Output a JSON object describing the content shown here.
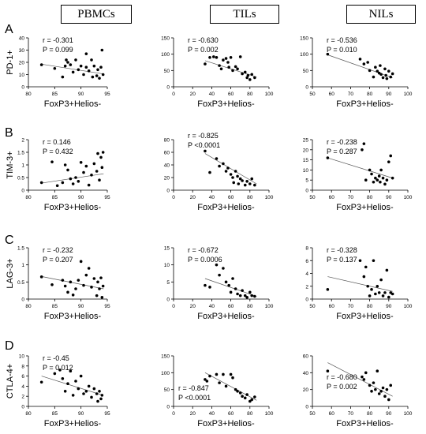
{
  "columns": [
    "PBMCs",
    "TILs",
    "NILs"
  ],
  "rows": [
    {
      "letter": "A",
      "ylabel": "PD-1+"
    },
    {
      "letter": "B",
      "ylabel": "TIM-3+"
    },
    {
      "letter": "C",
      "ylabel": "LAG-3+"
    },
    {
      "letter": "D",
      "ylabel": "CTLA-4+"
    }
  ],
  "xlabel": "FoxP3+Helios-",
  "chart_data": [
    {
      "type": "scatter",
      "row": "A",
      "column": "PBMCs",
      "xlabel": "FoxP3+Helios-",
      "ylabel": "PD-1+",
      "xlim": [
        80,
        95
      ],
      "ylim": [
        0,
        40
      ],
      "xticks": [
        80,
        85,
        90,
        95
      ],
      "yticks": [
        0,
        10,
        20,
        30,
        40
      ],
      "x": [
        82.5,
        85,
        86.5,
        87,
        87.2,
        87.5,
        88,
        88.5,
        89,
        89.5,
        90,
        90.5,
        91,
        91,
        91.5,
        92,
        92.2,
        92.5,
        93,
        93.2,
        93.5,
        93.8,
        94,
        94.2
      ],
      "y": [
        18,
        15,
        8,
        17,
        22,
        20,
        18,
        12,
        22,
        14,
        17,
        10,
        27,
        16,
        13,
        22,
        8,
        17,
        9,
        14,
        7,
        16,
        30,
        10
      ],
      "trend": [
        [
          82.5,
          18.5
        ],
        [
          94.3,
          10.5
        ]
      ],
      "r": "r = -0.301",
      "p": "P = 0.099"
    },
    {
      "type": "scatter",
      "row": "A",
      "column": "TILs",
      "xlabel": "FoxP3+Helios-",
      "ylabel": "PD-1+",
      "xlim": [
        0,
        100
      ],
      "ylim": [
        0,
        150
      ],
      "xticks": [
        0,
        20,
        40,
        60,
        80,
        100
      ],
      "yticks": [
        0,
        50,
        100,
        150
      ],
      "x": [
        33,
        38,
        42,
        45,
        48,
        50,
        52,
        55,
        57,
        58,
        60,
        62,
        65,
        67,
        70,
        72,
        75,
        77,
        78,
        80,
        82,
        85
      ],
      "y": [
        70,
        90,
        92,
        90,
        65,
        55,
        82,
        87,
        75,
        60,
        90,
        50,
        62,
        55,
        92,
        40,
        45,
        28,
        35,
        22,
        38,
        28
      ],
      "trend": [
        [
          33,
          80
        ],
        [
          87,
          30
        ]
      ],
      "r": "r = -0.630",
      "p": "P = 0.002"
    },
    {
      "type": "scatter",
      "row": "A",
      "column": "NILs",
      "xlabel": "FoxP3+Helios-",
      "ylabel": "PD-1+",
      "xlim": [
        50,
        100
      ],
      "ylim": [
        0,
        150
      ],
      "xticks": [
        50,
        60,
        70,
        80,
        90,
        100
      ],
      "yticks": [
        0,
        50,
        100,
        150
      ],
      "x": [
        58,
        75,
        77,
        79,
        80,
        82,
        83,
        84,
        85,
        85.5,
        86,
        87,
        88,
        88.5,
        89,
        90,
        91,
        92
      ],
      "y": [
        100,
        85,
        70,
        75,
        50,
        30,
        60,
        48,
        42,
        65,
        38,
        28,
        55,
        35,
        25,
        48,
        30,
        40
      ],
      "trend": [
        [
          58,
          98
        ],
        [
          92,
          28
        ]
      ],
      "r": "r = -0.536",
      "p": "P = 0.010"
    },
    {
      "type": "scatter",
      "row": "B",
      "column": "PBMCs",
      "xlabel": "FoxP3+Helios-",
      "ylabel": "TIM-3+",
      "xlim": [
        80,
        95
      ],
      "ylim": [
        0,
        2
      ],
      "xticks": [
        80,
        85,
        90,
        95
      ],
      "yticks": [
        0,
        0.5,
        1,
        1.5,
        2
      ],
      "x": [
        82.5,
        84.5,
        85.5,
        86.5,
        87,
        87.5,
        88,
        88.5,
        89,
        89.5,
        90,
        90.5,
        91,
        91.5,
        92,
        92.5,
        93,
        93.2,
        93.5,
        93.8,
        94,
        94.2
      ],
      "y": [
        0.3,
        1.12,
        0.18,
        0.3,
        1.0,
        0.8,
        0.45,
        0.25,
        0.5,
        0.35,
        1.1,
        0.7,
        0.95,
        0.2,
        0.6,
        1.05,
        0.75,
        1.45,
        0.4,
        1.3,
        0.9,
        1.5
      ],
      "trend": [
        [
          82.5,
          0.28
        ],
        [
          94.3,
          0.65
        ]
      ],
      "r": "r = 0.146",
      "p": "P = 0.432"
    },
    {
      "type": "scatter",
      "row": "B",
      "column": "TILs",
      "xlabel": "FoxP3+Helios-",
      "ylabel": "TIM-3+",
      "xlim": [
        0,
        100
      ],
      "ylim": [
        0,
        80
      ],
      "xticks": [
        0,
        20,
        40,
        60,
        80,
        100
      ],
      "yticks": [
        0,
        20,
        40,
        60,
        80
      ],
      "x": [
        33,
        38,
        45,
        48,
        52,
        55,
        57,
        60,
        62,
        63,
        65,
        67,
        68,
        70,
        72,
        75,
        77,
        80,
        82,
        85
      ],
      "y": [
        62,
        28,
        50,
        38,
        42,
        30,
        35,
        25,
        20,
        12,
        30,
        22,
        10,
        18,
        15,
        8,
        14,
        10,
        18,
        8
      ],
      "trend": [
        [
          33,
          58
        ],
        [
          87,
          10
        ]
      ],
      "r": "r = -0.825",
      "p": "P <0.0001"
    },
    {
      "type": "scatter",
      "row": "B",
      "column": "NILs",
      "xlabel": "FoxP3+Helios-",
      "ylabel": "TIM-3+",
      "xlim": [
        50,
        100
      ],
      "ylim": [
        0,
        25
      ],
      "xticks": [
        50,
        60,
        70,
        80,
        90,
        100
      ],
      "yticks": [
        0,
        5,
        10,
        15,
        20,
        25
      ],
      "x": [
        58,
        76,
        77,
        78,
        80,
        81,
        82,
        83,
        84,
        85,
        85.5,
        86,
        87,
        88,
        89,
        90,
        91,
        92
      ],
      "y": [
        16,
        20,
        23,
        5,
        10,
        8,
        4,
        6,
        5,
        7,
        4,
        10,
        6,
        3,
        5,
        14,
        17,
        6
      ],
      "trend": [
        [
          58,
          16
        ],
        [
          92,
          6
        ]
      ],
      "r": "r = -0.238",
      "p": "P = 0.287"
    },
    {
      "type": "scatter",
      "row": "C",
      "column": "PBMCs",
      "xlabel": "FoxP3+Helios-",
      "ylabel": "LAG-3+",
      "xlim": [
        80,
        95
      ],
      "ylim": [
        0,
        1.5
      ],
      "xticks": [
        80,
        85,
        90,
        95
      ],
      "yticks": [
        0,
        0.5,
        1,
        1.5
      ],
      "x": [
        82.5,
        84.5,
        86.5,
        87,
        87.5,
        88,
        88.5,
        89,
        89.5,
        90,
        90.5,
        91,
        91.5,
        92,
        92.5,
        93,
        93.2,
        93.5,
        93.8,
        94,
        94.2
      ],
      "y": [
        0.65,
        0.42,
        0.55,
        0.38,
        0.2,
        0.5,
        0.12,
        0.3,
        0.55,
        1.1,
        0.4,
        0.7,
        0.9,
        0.35,
        0.6,
        0.1,
        0.5,
        0.3,
        0.62,
        0.05,
        0.38
      ],
      "trend": [
        [
          82.5,
          0.66
        ],
        [
          94.3,
          0.3
        ]
      ],
      "r": "r = -0.232",
      "p": "P = 0.207"
    },
    {
      "type": "scatter",
      "row": "C",
      "column": "TILs",
      "xlabel": "FoxP3+Helios-",
      "ylabel": "LAG-3+",
      "xlim": [
        0,
        100
      ],
      "ylim": [
        0,
        15
      ],
      "xticks": [
        0,
        20,
        40,
        60,
        80,
        100
      ],
      "yticks": [
        0,
        5,
        10,
        15
      ],
      "x": [
        33,
        38,
        45,
        48,
        52,
        55,
        58,
        60,
        62,
        65,
        67,
        70,
        72,
        75,
        77,
        80,
        82,
        85
      ],
      "y": [
        4,
        3.5,
        10,
        7,
        9,
        5,
        4,
        2,
        6,
        3,
        1.5,
        1,
        2.5,
        1,
        0.5,
        2,
        1,
        0.8
      ],
      "trend": [
        [
          33,
          6
        ],
        [
          87,
          0.8
        ]
      ],
      "r": "r = -0.672",
      "p": "P = 0.0006"
    },
    {
      "type": "scatter",
      "row": "C",
      "column": "NILs",
      "xlabel": "FoxP3+Helios-",
      "ylabel": "LAG-3+",
      "xlim": [
        50,
        100
      ],
      "ylim": [
        0,
        8
      ],
      "xticks": [
        50,
        60,
        70,
        80,
        90,
        100
      ],
      "yticks": [
        0,
        2,
        4,
        6,
        8
      ],
      "x": [
        58,
        75,
        77,
        78,
        79,
        80,
        81,
        82,
        83,
        84,
        85,
        86,
        87,
        88,
        89,
        90,
        91,
        92
      ],
      "y": [
        1.5,
        6,
        3.5,
        5,
        2,
        0.5,
        1.5,
        6,
        0.8,
        2,
        1,
        3,
        0.5,
        1,
        4.5,
        0.3,
        1,
        0.8
      ],
      "trend": [
        [
          58,
          3.5
        ],
        [
          92,
          1.2
        ]
      ],
      "r": "r = -0.328",
      "p": "P = 0.137"
    },
    {
      "type": "scatter",
      "row": "D",
      "column": "PBMCs",
      "xlabel": "FoxP3+Helios-",
      "ylabel": "CTLA-4+",
      "xlim": [
        80,
        95
      ],
      "ylim": [
        0,
        10
      ],
      "xticks": [
        80,
        85,
        90,
        95
      ],
      "yticks": [
        0,
        2,
        4,
        6,
        8,
        10
      ],
      "x": [
        82.5,
        85,
        86,
        86.5,
        87,
        87.5,
        88,
        88.5,
        89,
        89.5,
        90,
        90.5,
        91,
        91.5,
        92,
        92.5,
        93,
        93.2,
        93.5,
        93.8,
        94
      ],
      "y": [
        4.8,
        6.5,
        7.2,
        5.5,
        3,
        4.5,
        7,
        2.2,
        5,
        3.5,
        6,
        2.5,
        3,
        4,
        1.8,
        3.5,
        2.5,
        1,
        3,
        1.5,
        2.2
      ],
      "trend": [
        [
          82.5,
          6
        ],
        [
          94.2,
          2.2
        ]
      ],
      "r": "r = -0.45",
      "p": "P = 0.012"
    },
    {
      "type": "scatter",
      "row": "D",
      "column": "TILs",
      "xlabel": "FoxP3+Helios-",
      "ylabel": "CTLA-4+",
      "xlim": [
        0,
        100
      ],
      "ylim": [
        0,
        150
      ],
      "xticks": [
        0,
        20,
        40,
        60,
        80,
        100
      ],
      "yticks": [
        0,
        50,
        100,
        150
      ],
      "x": [
        33,
        35,
        38,
        45,
        48,
        52,
        55,
        60,
        62,
        65,
        67,
        70,
        72,
        75,
        77,
        80,
        82,
        85
      ],
      "y": [
        80,
        75,
        90,
        95,
        70,
        95,
        60,
        95,
        85,
        50,
        45,
        40,
        30,
        25,
        35,
        15,
        20,
        28
      ],
      "trend": [
        [
          33,
          100
        ],
        [
          87,
          18
        ]
      ],
      "r": "r = -0.847",
      "p": "P <0.0001"
    },
    {
      "type": "scatter",
      "row": "D",
      "column": "NILs",
      "xlabel": "FoxP3+Helios-",
      "ylabel": "CTLA-4+",
      "xlim": [
        50,
        100
      ],
      "ylim": [
        0,
        60
      ],
      "xticks": [
        50,
        60,
        70,
        80,
        90,
        100
      ],
      "yticks": [
        0,
        20,
        40,
        60
      ],
      "x": [
        58,
        76,
        77,
        78,
        80,
        81,
        82,
        83,
        84,
        85,
        86,
        87,
        88,
        89,
        90,
        91
      ],
      "y": [
        42,
        35,
        32,
        40,
        25,
        18,
        28,
        20,
        42,
        15,
        18,
        22,
        12,
        20,
        8,
        25
      ],
      "trend": [
        [
          58,
          52
        ],
        [
          92,
          12
        ]
      ],
      "r": "r = -0.680",
      "p": "P = 0.002"
    }
  ]
}
